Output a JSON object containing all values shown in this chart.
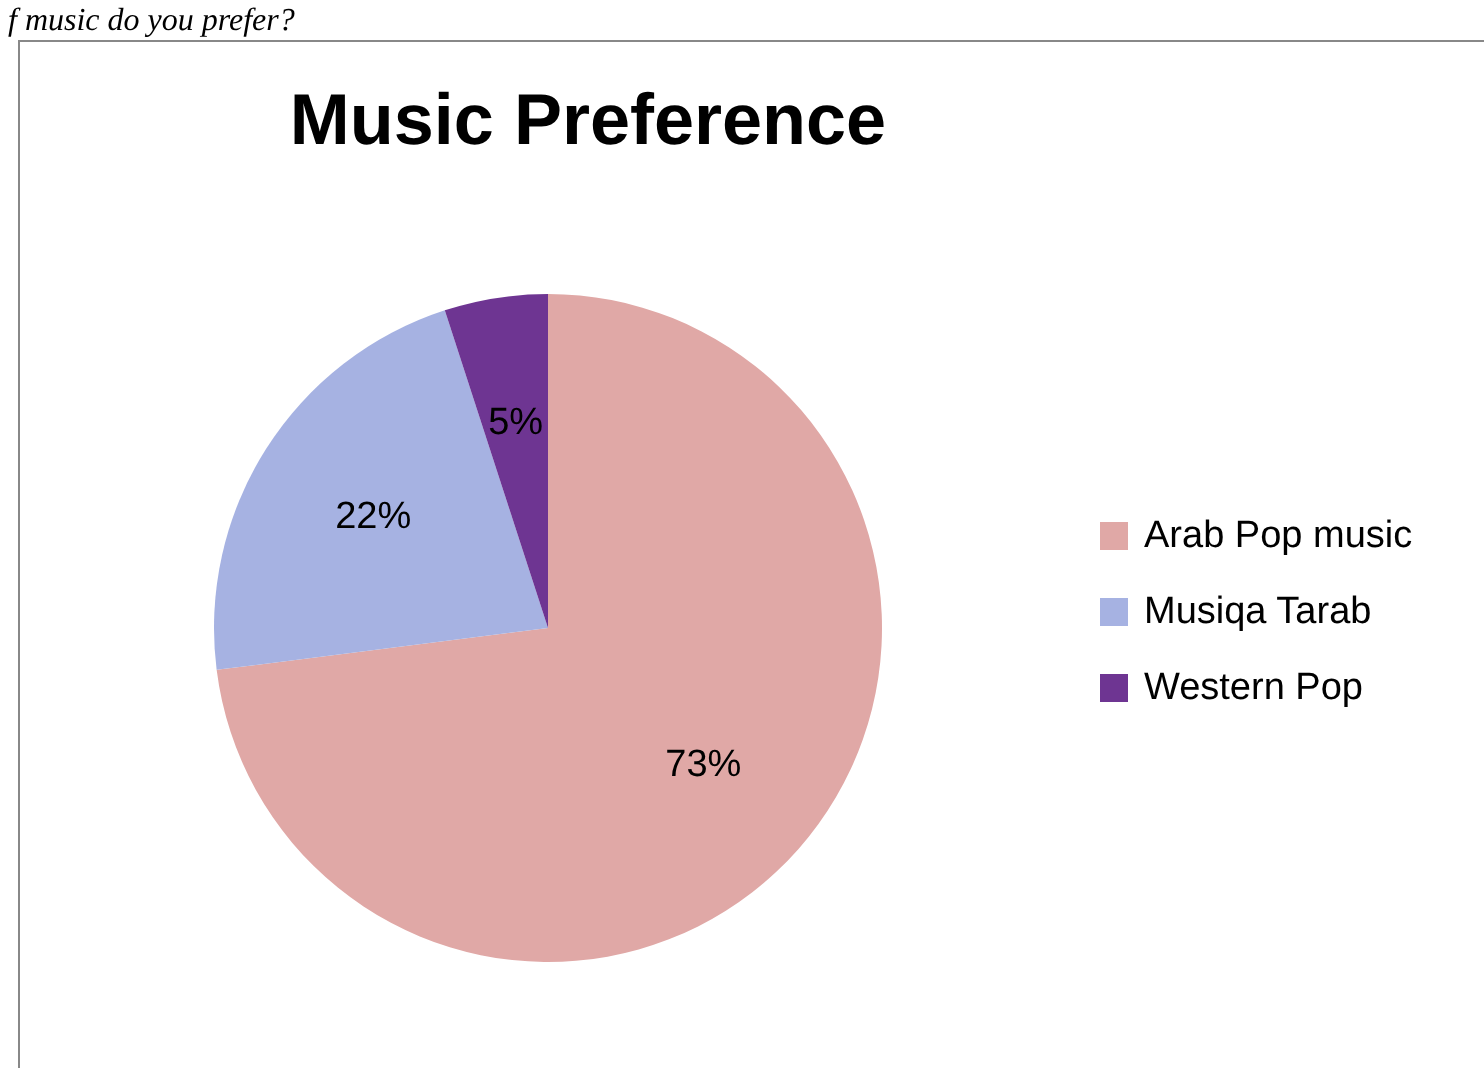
{
  "chart_data": {
    "type": "pie",
    "title": "Music Preference",
    "annotations": [
      "f music do you prefer?"
    ],
    "categories": [
      "Arab Pop music",
      "Musiqa Tarab",
      "Western Pop"
    ],
    "values": [
      73,
      22,
      5
    ],
    "colors": [
      "#e0a8a6",
      "#a6b2e2",
      "#6e3592"
    ],
    "value_labels": [
      "73%",
      "22%",
      "5%"
    ],
    "legend": "right"
  }
}
